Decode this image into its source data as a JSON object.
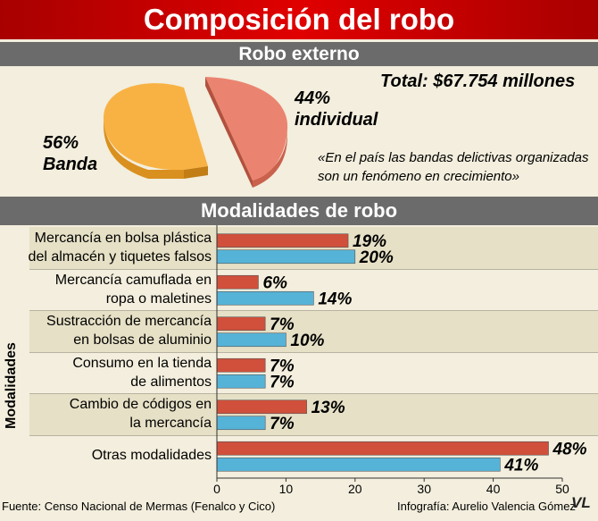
{
  "title": "Composición del robo",
  "robo_externo": {
    "heading": "Robo externo",
    "total": "Total: $67.754 millones",
    "slices": [
      {
        "pct": "56%",
        "name": "Banda",
        "value": 56,
        "color": "#f8b244",
        "shade": "#d9901f"
      },
      {
        "pct": "44%",
        "name": "individual",
        "value": 44,
        "color": "#ea8470",
        "shade": "#c9614d"
      }
    ],
    "quote_line1": "«En el país las bandas delictivas organizadas",
    "quote_line2": "son un fenómeno en crecimiento»"
  },
  "modalidades_heading": "Modalidades de robo",
  "chart_data": {
    "type": "bar",
    "ylabel": "Modalidades",
    "xlabel": "",
    "xlim": [
      0,
      50
    ],
    "xticks": [
      "0",
      "10",
      "20",
      "30",
      "40",
      "50"
    ],
    "categories": [
      [
        "Mercancía en bolsa plástica",
        "del almacén y tiquetes falsos"
      ],
      [
        "Mercancía camuflada en",
        "ropa o maletines"
      ],
      [
        "Sustracción de mercancía",
        "en bolsas de aluminio"
      ],
      [
        "Consumo en la tienda",
        "de alimentos"
      ],
      [
        "Cambio de códigos en",
        "la mercancía"
      ],
      [
        "Otras modalidades"
      ]
    ],
    "series": [
      {
        "values": [
          19,
          6,
          7,
          7,
          13,
          48
        ],
        "labels": [
          "19%",
          "6%",
          "7%",
          "7%",
          "13%",
          "48%"
        ],
        "color": "#d0503b"
      },
      {
        "values": [
          20,
          14,
          10,
          7,
          7,
          41
        ],
        "labels": [
          "20%",
          "14%",
          "10%",
          "7%",
          "7%",
          "41%"
        ],
        "color": "#56b3d8"
      }
    ]
  },
  "footer": {
    "source": "Fuente: Censo Nacional de Mermas (Fenalco y Cico)",
    "credit": "Infografía: Aurelio Valencia Gómez",
    "logo": "VL"
  }
}
